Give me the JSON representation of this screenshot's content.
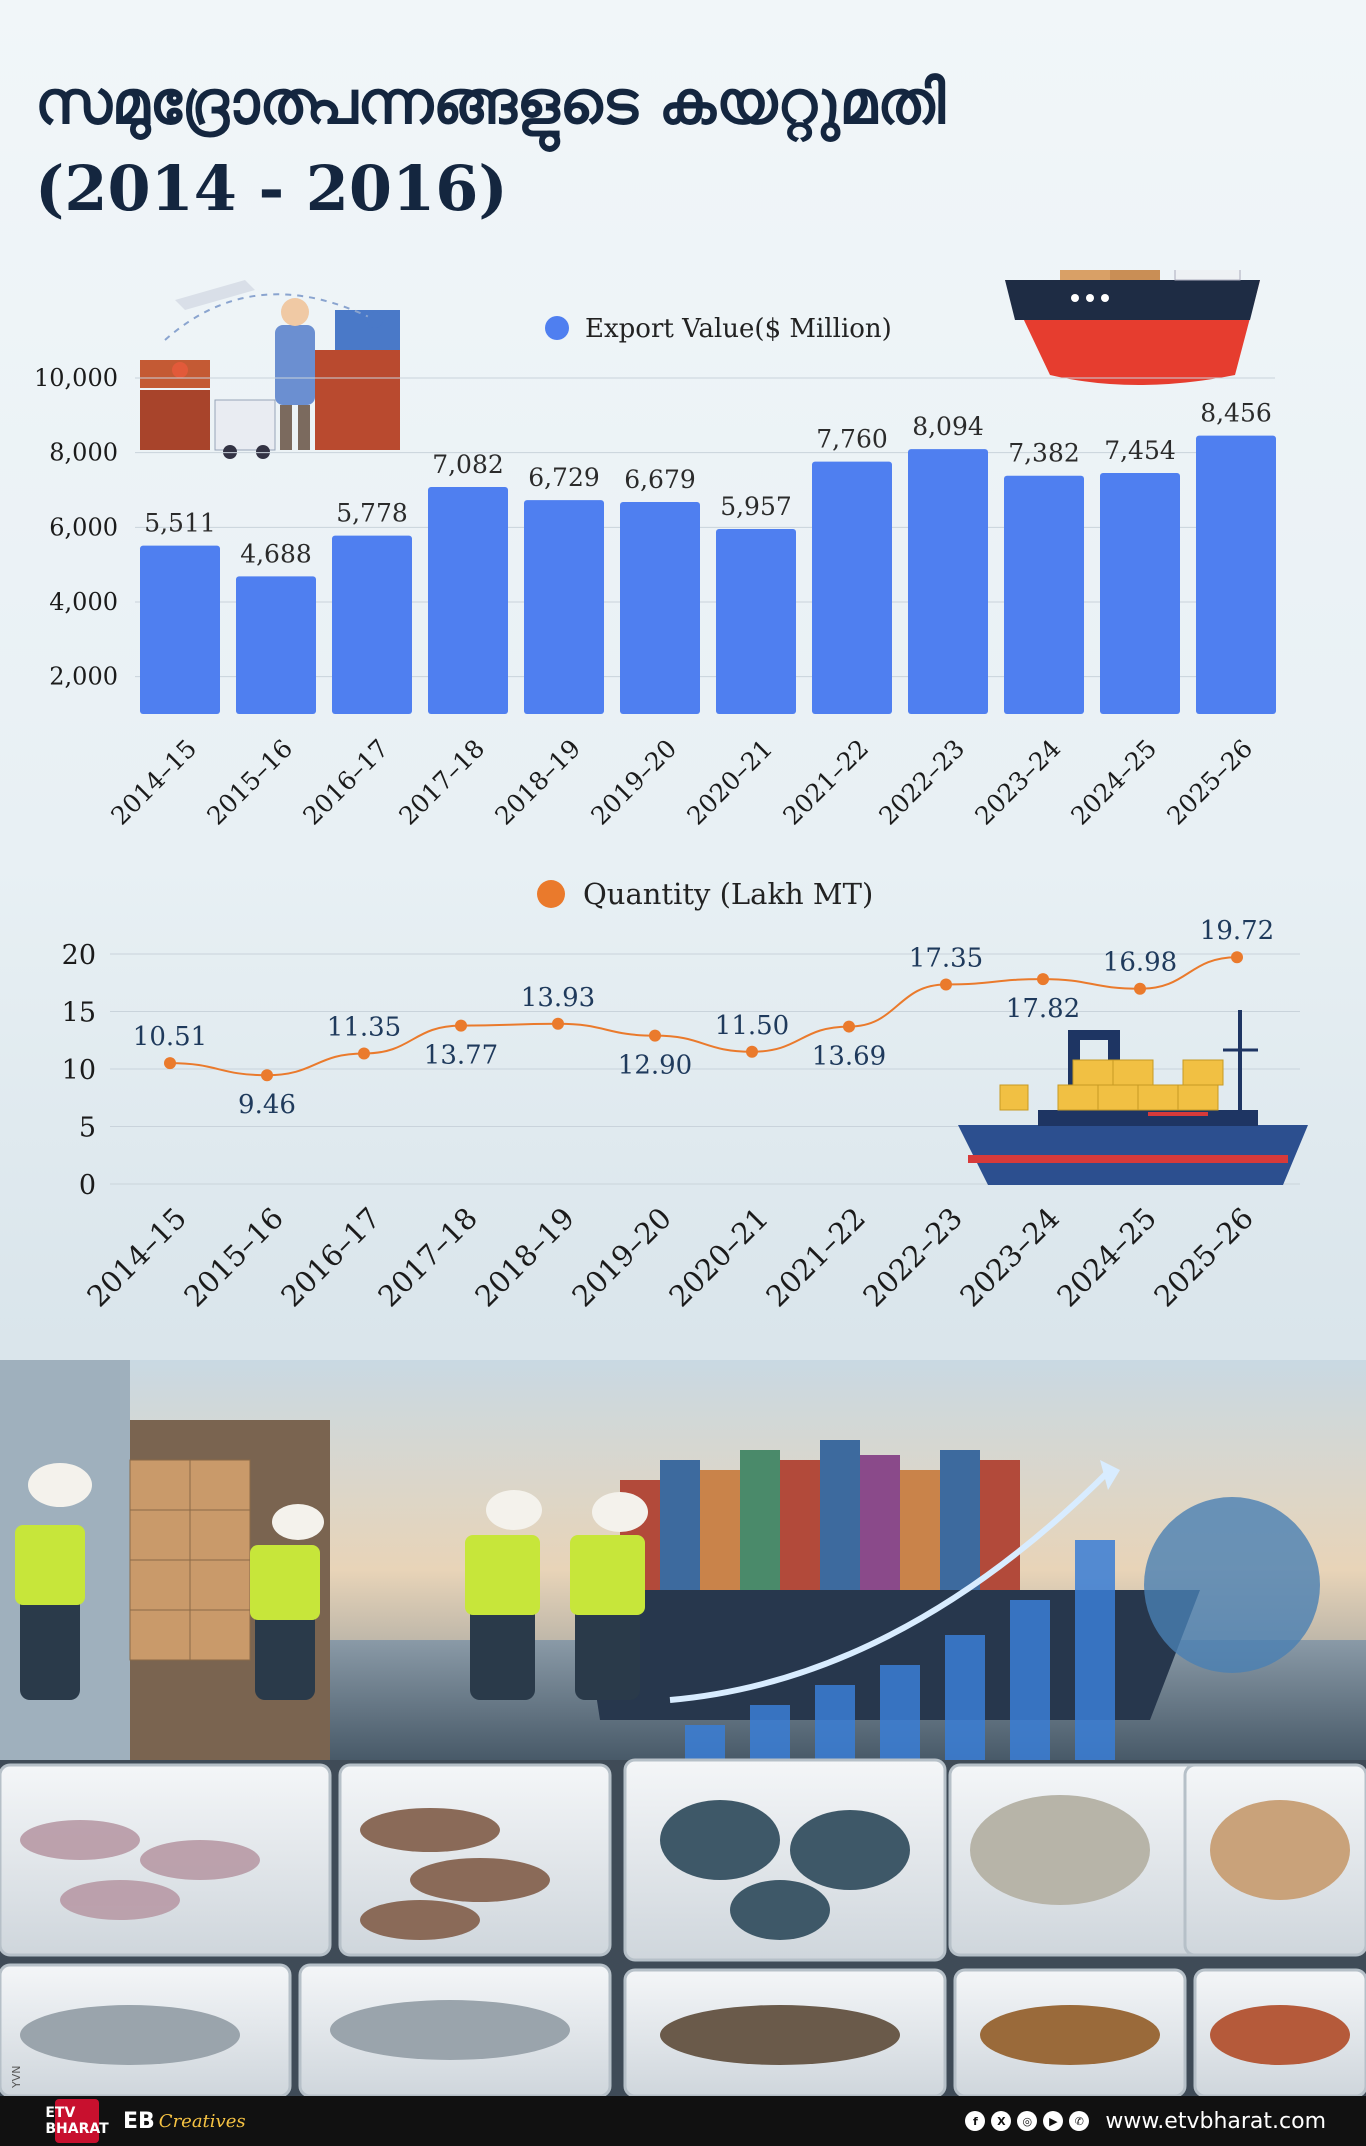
{
  "title": {
    "line1": "സമുദ്രോത്പന്നങ്ങളുടെ കയറ്റുമതി",
    "line2": "(2014 - 2016)"
  },
  "chart_data": [
    {
      "type": "bar",
      "legend": "Export Value($ Million)",
      "categories": [
        "2014–15",
        "2015–16",
        "2016–17",
        "2017–18",
        "2018–19",
        "2019–20",
        "2020–21",
        "2021–22",
        "2022–23",
        "2023–24",
        "2024–25",
        "2025–26"
      ],
      "values": [
        5511,
        4688,
        5778,
        7082,
        6729,
        6679,
        5957,
        7760,
        8094,
        7382,
        7454,
        8456
      ],
      "value_labels": [
        "5,511",
        "4,688",
        "5,778",
        "7,082",
        "6,729",
        "6,679",
        "5,957",
        "7,760",
        "8,094",
        "7,382",
        "7,454",
        "8,456"
      ],
      "yticks": [
        "2,000",
        "4,000",
        "6,000",
        "8,000",
        "10,000"
      ],
      "ytick_values": [
        2000,
        4000,
        6000,
        8000,
        10000
      ],
      "ylim": [
        1000,
        10000
      ],
      "color": "#4f7ff0",
      "legend_position": "top-center",
      "grid": true
    },
    {
      "type": "line",
      "legend": "Quantity (Lakh MT)",
      "categories": [
        "2014–15",
        "2015–16",
        "2016–17",
        "2017–18",
        "2018–19",
        "2019–20",
        "2020–21",
        "2021–22",
        "2022–23",
        "2023–24",
        "2024–25",
        "2025–26"
      ],
      "values": [
        10.51,
        9.46,
        11.35,
        13.77,
        13.93,
        12.9,
        11.5,
        13.69,
        17.35,
        17.82,
        16.98,
        19.72
      ],
      "value_labels": [
        "10.51",
        "9.46",
        "11.35",
        "13.77",
        "13.93",
        "12.90",
        "11.50",
        "13.69",
        "17.35",
        "17.82",
        "16.98",
        "19.72"
      ],
      "yticks": [
        "0",
        "5",
        "10",
        "15",
        "20"
      ],
      "ytick_values": [
        0,
        5,
        10,
        15,
        20
      ],
      "ylim": [
        0,
        20
      ],
      "color": "#ea7a2c",
      "legend_position": "top-center",
      "grid": true
    }
  ],
  "footer": {
    "logo_text": "ETV BHARAT",
    "brand": "EB",
    "brand_script": "Creatives",
    "website": "www.etvbharat.com",
    "social_icons": [
      "facebook-icon",
      "x-icon",
      "instagram-icon",
      "youtube-icon",
      "whatsapp-icon"
    ]
  },
  "side_mark": "YVN"
}
